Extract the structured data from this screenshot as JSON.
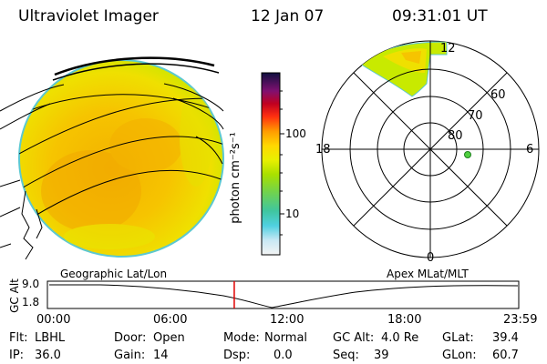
{
  "header": {
    "instrument": "Ultraviolet Imager",
    "date": "12 Jan 07",
    "time": "09:31:01 UT"
  },
  "colorbar": {
    "unit_label": "photon cm⁻²s⁻¹",
    "ticks": [
      "100",
      "10"
    ]
  },
  "polar_plot": {
    "mlt_labels": [
      "12",
      "18",
      "6",
      "0"
    ],
    "lat_labels": [
      "60",
      "70",
      "80"
    ]
  },
  "timeline": {
    "left_title": "Geographic Lat/Lon",
    "right_title": "Apex MLat/MLT",
    "axis_title": "GC Alt",
    "y_ticks": [
      "9.0",
      "1.8"
    ],
    "x_ticks": [
      "00:00",
      "06:00",
      "12:00",
      "18:00",
      "23:59"
    ],
    "current_time_fraction": 0.396
  },
  "status": {
    "filter_label": "Flt:",
    "filter_value": "LBHL",
    "ip_label": "IP:",
    "ip_value": "36.0",
    "door_label": "Door:",
    "door_value": "Open",
    "gain_label": "Gain:",
    "gain_value": "14",
    "mode_label": "Mode:",
    "mode_value": "Normal",
    "dsp_label": "Dsp:",
    "dsp_value": "0.0",
    "gcalt_label": "GC Alt:",
    "gcalt_value": "4.0 Re",
    "seq_label": "Seq:",
    "seq_value": "39",
    "glat_label": "GLat:",
    "glat_value": "39.4",
    "glon_label": "GLon:",
    "glon_value": "60.7"
  }
}
